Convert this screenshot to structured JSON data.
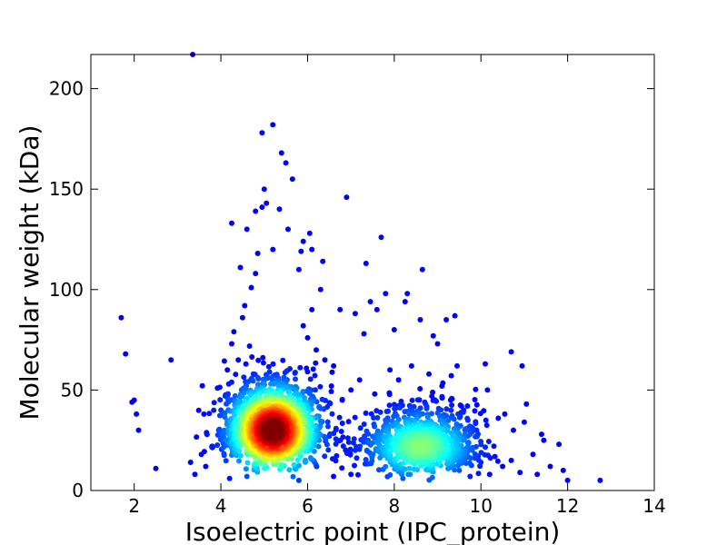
{
  "chart_data": {
    "type": "scatter",
    "title": "",
    "xlabel": "Isoelectric point (IPC_protein)",
    "ylabel": "Molecular weight (kDa)",
    "xlim": [
      1,
      14
    ],
    "ylim": [
      0,
      217
    ],
    "x_ticks": [
      2,
      4,
      6,
      8,
      10,
      12,
      14
    ],
    "x_tick_labels": [
      "2",
      "4",
      "6",
      "8",
      "10",
      "12",
      "14"
    ],
    "y_ticks": [
      0,
      50,
      100,
      150,
      200
    ],
    "y_tick_labels": [
      "0",
      "50",
      "100",
      "150",
      "200"
    ],
    "grid": false,
    "legend": "none",
    "colormap": "jet (point density: blue = low, red = high)",
    "density_clusters": [
      {
        "center": [
          5.2,
          30
        ],
        "spread": [
          0.55,
          12
        ]
      },
      {
        "center": [
          8.6,
          22
        ],
        "spread": [
          0.7,
          10
        ]
      }
    ],
    "points": [
      [
        3.35,
        217
      ],
      [
        5.2,
        182
      ],
      [
        4.95,
        178
      ],
      [
        5.4,
        168
      ],
      [
        5.5,
        163
      ],
      [
        5.65,
        155
      ],
      [
        5.0,
        150
      ],
      [
        5.05,
        143
      ],
      [
        4.95,
        141
      ],
      [
        5.35,
        140
      ],
      [
        4.8,
        139
      ],
      [
        5.55,
        130
      ],
      [
        4.6,
        130
      ],
      [
        4.25,
        133
      ],
      [
        6.05,
        128
      ],
      [
        5.9,
        124
      ],
      [
        6.9,
        146
      ],
      [
        7.7,
        126
      ],
      [
        6.1,
        120
      ],
      [
        5.85,
        119
      ],
      [
        5.2,
        120
      ],
      [
        4.85,
        118
      ],
      [
        6.35,
        114
      ],
      [
        7.35,
        113
      ],
      [
        8.65,
        110
      ],
      [
        4.45,
        111
      ],
      [
        5.8,
        110
      ],
      [
        6.3,
        100
      ],
      [
        6.1,
        90
      ],
      [
        6.75,
        90
      ],
      [
        7.1,
        88
      ],
      [
        7.45,
        94
      ],
      [
        7.8,
        98
      ],
      [
        8.3,
        98
      ],
      [
        8.6,
        85
      ],
      [
        9.2,
        85
      ],
      [
        9.4,
        87
      ],
      [
        8.25,
        94
      ],
      [
        7.6,
        90
      ],
      [
        7.3,
        78
      ],
      [
        8.0,
        80
      ],
      [
        8.9,
        77
      ],
      [
        9.0,
        73
      ],
      [
        9.45,
        62
      ],
      [
        10.1,
        63
      ],
      [
        10.7,
        69
      ],
      [
        10.95,
        62
      ],
      [
        10.15,
        50
      ],
      [
        10.55,
        38
      ],
      [
        11.05,
        43
      ],
      [
        10.4,
        36
      ],
      [
        10.75,
        30
      ],
      [
        11.0,
        34
      ],
      [
        11.4,
        28
      ],
      [
        11.8,
        23
      ],
      [
        11.45,
        25
      ],
      [
        11.2,
        18
      ],
      [
        11.6,
        12
      ],
      [
        11.9,
        10
      ],
      [
        12.0,
        5
      ],
      [
        12.75,
        5
      ],
      [
        11.3,
        8
      ],
      [
        10.9,
        9
      ],
      [
        10.5,
        12
      ],
      [
        10.2,
        8
      ],
      [
        10.0,
        14
      ],
      [
        9.8,
        20
      ],
      [
        10.3,
        22
      ],
      [
        1.7,
        86
      ],
      [
        1.8,
        68
      ],
      [
        2.85,
        65
      ],
      [
        1.95,
        44
      ],
      [
        2.0,
        45
      ],
      [
        2.05,
        38
      ],
      [
        2.1,
        30
      ],
      [
        2.5,
        11
      ],
      [
        3.3,
        14
      ],
      [
        3.4,
        8
      ],
      [
        3.55,
        18
      ],
      [
        3.65,
        12
      ],
      [
        3.8,
        22
      ],
      [
        3.95,
        30
      ],
      [
        4.0,
        40
      ],
      [
        4.1,
        47
      ],
      [
        4.15,
        60
      ],
      [
        4.3,
        79
      ],
      [
        4.25,
        73
      ],
      [
        4.4,
        65
      ],
      [
        4.5,
        86
      ],
      [
        4.55,
        92
      ],
      [
        4.7,
        101
      ],
      [
        4.8,
        108
      ],
      [
        5.9,
        82
      ],
      [
        6.0,
        76
      ],
      [
        6.2,
        70
      ],
      [
        6.4,
        65
      ],
      [
        6.6,
        62
      ],
      [
        6.55,
        52
      ],
      [
        6.8,
        45
      ],
      [
        7.0,
        50
      ],
      [
        7.2,
        55
      ],
      [
        7.55,
        48
      ],
      [
        7.9,
        60
      ],
      [
        8.1,
        55
      ],
      [
        8.4,
        62
      ],
      [
        8.8,
        58
      ],
      [
        9.1,
        52
      ],
      [
        9.3,
        45
      ],
      [
        9.6,
        40
      ],
      [
        9.7,
        35
      ],
      [
        9.9,
        30
      ],
      [
        9.5,
        10
      ],
      [
        9.75,
        7
      ],
      [
        8.2,
        6
      ],
      [
        7.0,
        8
      ],
      [
        6.6,
        7
      ],
      [
        4.2,
        6
      ],
      [
        4.6,
        7
      ],
      [
        5.8,
        5
      ],
      [
        7.75,
        30
      ],
      [
        7.4,
        25
      ],
      [
        7.1,
        20
      ]
    ]
  }
}
